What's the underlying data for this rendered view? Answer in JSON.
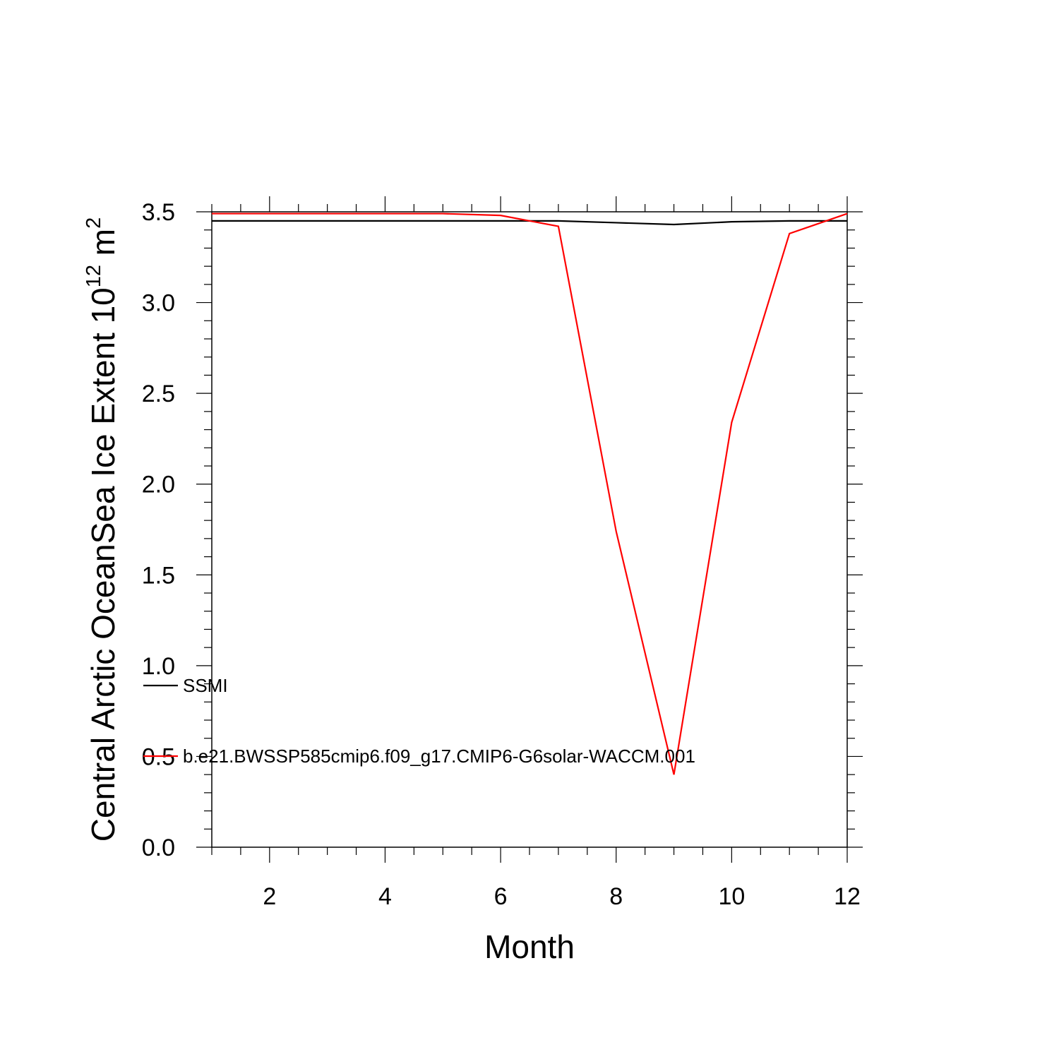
{
  "chart_data": {
    "type": "line",
    "title": "",
    "xlabel": "Month",
    "ylabel": {
      "prefix": "Central Arctic OceanSea Ice Extent 10",
      "sup1": "12",
      "mid": " m",
      "sup2": "2"
    },
    "xlim": [
      1,
      12
    ],
    "ylim": [
      0,
      3.5
    ],
    "xticks": [
      2,
      4,
      6,
      8,
      10,
      12
    ],
    "xtick_labels": [
      "2",
      "4",
      "6",
      "8",
      "10",
      "12"
    ],
    "yticks": [
      0,
      0.5,
      1,
      1.5,
      2,
      2.5,
      3,
      3.5
    ],
    "ytick_labels": [
      "0.0",
      "0.5",
      "1.0",
      "1.5",
      "2.0",
      "2.5",
      "3.0",
      "3.5"
    ],
    "x": [
      1,
      2,
      3,
      4,
      5,
      6,
      7,
      8,
      9,
      10,
      11,
      12
    ],
    "grid": false,
    "legend_position": "left-inside",
    "series": [
      {
        "name": "SSMI",
        "color": "#000000",
        "values": [
          3.45,
          3.45,
          3.45,
          3.45,
          3.45,
          3.45,
          3.45,
          3.44,
          3.43,
          3.445,
          3.45,
          3.45
        ]
      },
      {
        "name": "b.e21.BWSSP585cmip6.f09_g17.CMIP6-G6solar-WACCM.001",
        "color": "#ff0000",
        "values": [
          3.49,
          3.49,
          3.49,
          3.49,
          3.49,
          3.48,
          3.42,
          1.74,
          0.4,
          2.34,
          3.38,
          3.49
        ]
      }
    ]
  }
}
